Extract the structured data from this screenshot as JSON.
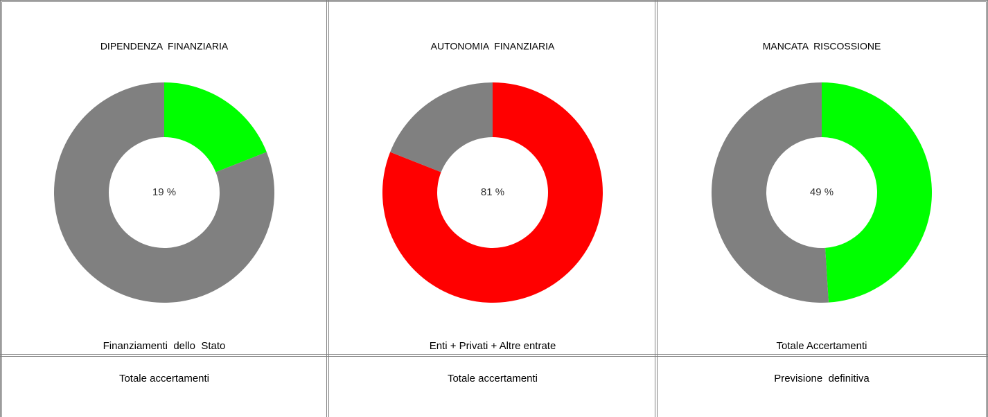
{
  "chart_data": [
    {
      "type": "donut",
      "title": "DIPENDENZA  FINANZIARIA",
      "values": [
        19,
        81
      ],
      "value_labels": [
        "19 %",
        null
      ],
      "colors": [
        "#00ff00",
        "#808080"
      ]
    },
    {
      "type": "donut",
      "title": "AUTONOMIA  FINANZIARIA",
      "values": [
        81,
        19
      ],
      "value_labels": [
        "81 %",
        null
      ],
      "colors": [
        "#ff0000",
        "#808080"
      ]
    },
    {
      "type": "donut",
      "title": "MANCATA  RISCOSSIONE",
      "values": [
        49,
        51
      ],
      "value_labels": [
        "49 %",
        null
      ],
      "colors": [
        "#00ff00",
        "#808080"
      ]
    }
  ],
  "table": {
    "rows": [
      [
        "Finanziamenti  dello  Stato",
        "Enti + Privati + Altre entrate",
        "Totale Accertamenti"
      ],
      [
        "Totale accertamenti",
        "Totale accertamenti",
        "Previsione  definitiva"
      ]
    ]
  }
}
